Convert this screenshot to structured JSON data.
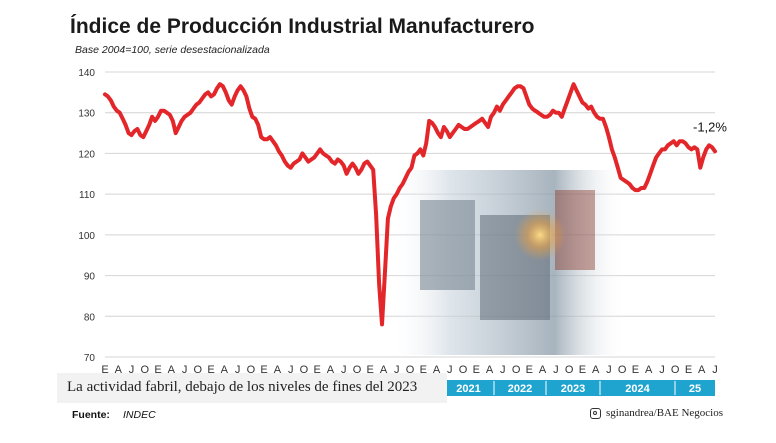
{
  "chart_data": {
    "type": "line",
    "title": "Índice de Producción Industrial Manufacturero",
    "subtitle": "Base 2004=100, serie desestacionalizada",
    "ylim": [
      70,
      140
    ],
    "yticks": [
      70,
      80,
      90,
      100,
      110,
      120,
      130,
      140
    ],
    "grid": true,
    "x_month_labels": [
      "E",
      "A",
      "J",
      "O",
      "E",
      "A",
      "J",
      "O",
      "E",
      "A",
      "J",
      "O",
      "E",
      "A",
      "J",
      "O",
      "E",
      "A",
      "J",
      "O",
      "E",
      "A",
      "J",
      "O",
      "E",
      "A",
      "J",
      "O",
      "E",
      "A",
      "J",
      "O",
      "E",
      "A",
      "J",
      "O",
      "E",
      "A",
      "J",
      "O",
      "E",
      "A",
      "J",
      "O",
      "E",
      "A",
      "J"
    ],
    "year_labels": [
      "2021",
      "2022",
      "2023",
      "2024",
      "25"
    ],
    "series": [
      {
        "color": "#e3262a",
        "start": "2014-01",
        "values": [
          134.5,
          134,
          133,
          131.5,
          130.5,
          130,
          128.5,
          127,
          125,
          124.5,
          125.5,
          126,
          124.5,
          124,
          125.5,
          127,
          129,
          128,
          129,
          130.5,
          130.5,
          130,
          129.5,
          128,
          125,
          126.5,
          128,
          129,
          129.5,
          130,
          131,
          132,
          132.5,
          133.5,
          134.5,
          135,
          134,
          134.5,
          136,
          137,
          136.5,
          135,
          133,
          132,
          134,
          135.5,
          136.5,
          135.5,
          134,
          131,
          129,
          128.5,
          127,
          124,
          123.5,
          123.5,
          124,
          123,
          122,
          120.5,
          119.5,
          118,
          117,
          116.5,
          117.5,
          118,
          118.5,
          120,
          119,
          118,
          118.5,
          119,
          120,
          121,
          120,
          119.5,
          119,
          118,
          117.5,
          118.5,
          118,
          117,
          115,
          116.5,
          117.5,
          116.5,
          115,
          116,
          117.5,
          118,
          117,
          116,
          105,
          88,
          78,
          91,
          104,
          107,
          109,
          110,
          111.5,
          112.5,
          114,
          115.5,
          116.5,
          119.5,
          120,
          121,
          119.5,
          122.5,
          128,
          127.5,
          126.5,
          125,
          124,
          126.5,
          125.5,
          124,
          125,
          126,
          127,
          126.5,
          126,
          126,
          126.5,
          127,
          127.5,
          128,
          128.5,
          127.5,
          126.5,
          129,
          130,
          131.5,
          130.5,
          132,
          133,
          134,
          135,
          136,
          136.5,
          136.5,
          136,
          134,
          132,
          131,
          130.5,
          130,
          129.5,
          129,
          129,
          129.5,
          130.5,
          130,
          130,
          129,
          131,
          133,
          135,
          137,
          135.5,
          134,
          132.5,
          132,
          131,
          131.5,
          130,
          129,
          128.5,
          128.5,
          126.5,
          124,
          121,
          119,
          116.5,
          114,
          113.5,
          113,
          112.5,
          111.5,
          111,
          111,
          111.5,
          111.5,
          113,
          115,
          117,
          119,
          120,
          121,
          121,
          122,
          122.5,
          123,
          122,
          123,
          123,
          122.5,
          121.5,
          121,
          121.5,
          121,
          116.5,
          119,
          121,
          122,
          121.5,
          120.5
        ],
        "last_label": "-1,2%"
      }
    ]
  },
  "caption": "La actividad fabril, debajo de los niveles de fines del 2023",
  "source": {
    "label": "Fuente:",
    "value": "INDEC"
  },
  "credit": "sginandrea/BAE Negocios"
}
